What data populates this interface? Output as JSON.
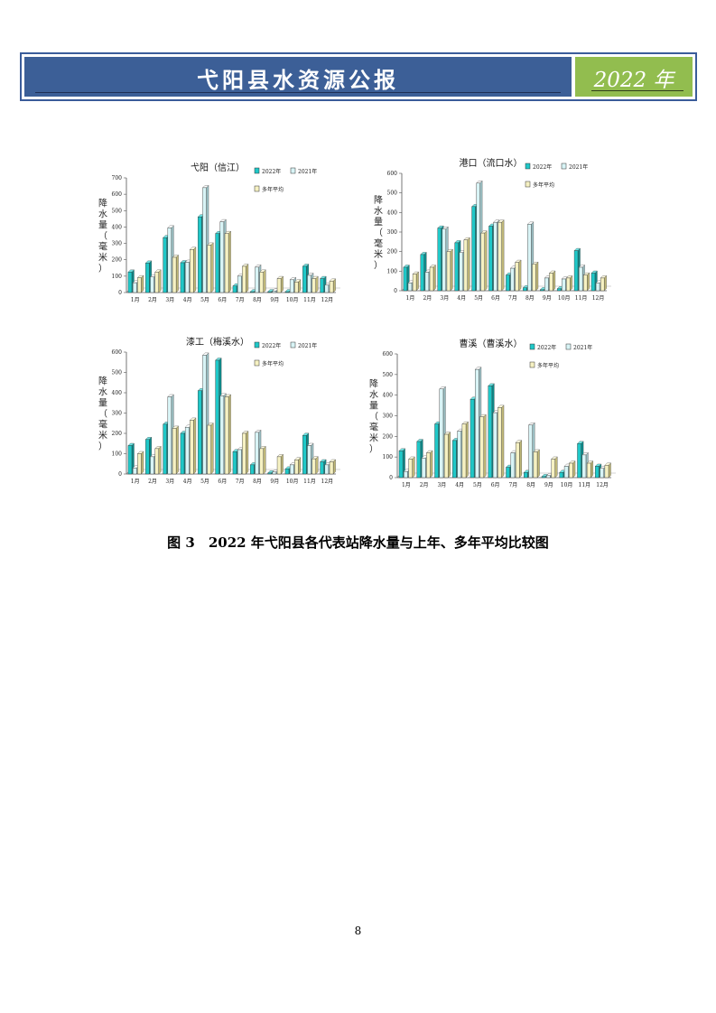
{
  "header": {
    "title": "弋阳县水资源公报",
    "year": "2022 年"
  },
  "legend_labels": [
    "2022年",
    "2021年",
    "多年平均"
  ],
  "colors": {
    "y2022": "#1fc8c8",
    "y2021": "#d8f4f6",
    "avg": "#f6f1c2"
  },
  "chart_data": [
    {
      "type": "bar",
      "title": "弋阳（信江）",
      "ylabel": "降水量（毫米）",
      "ylim": [
        0,
        700
      ],
      "yticks": [
        0,
        100,
        200,
        300,
        400,
        500,
        600,
        700
      ],
      "categories": [
        "1月",
        "2月",
        "3月",
        "4月",
        "5月",
        "6月",
        "7月",
        "8月",
        "9月",
        "10月",
        "11月",
        "12月"
      ],
      "series": [
        {
          "name": "2022年",
          "values": [
            125,
            180,
            335,
            182,
            462,
            360,
            40,
            5,
            5,
            5,
            160,
            85
          ]
        },
        {
          "name": "2021年",
          "values": [
            60,
            95,
            395,
            185,
            640,
            432,
            100,
            155,
            10,
            78,
            105,
            45
          ]
        },
        {
          "name": "多年平均",
          "values": [
            90,
            125,
            215,
            263,
            290,
            360,
            160,
            125,
            85,
            65,
            85,
            70
          ]
        }
      ]
    },
    {
      "type": "bar",
      "title": "港口（流口水）",
      "ylabel": "降水量（毫米）",
      "ylim": [
        0,
        600
      ],
      "yticks": [
        0,
        100,
        200,
        300,
        400,
        500,
        600
      ],
      "categories": [
        "1月",
        "2月",
        "3月",
        "4月",
        "5月",
        "6月",
        "7月",
        "8月",
        "9月",
        "10月",
        "11月",
        "12月"
      ],
      "series": [
        {
          "name": "2022年",
          "values": [
            120,
            185,
            320,
            245,
            430,
            330,
            80,
            15,
            5,
            10,
            205,
            90
          ]
        },
        {
          "name": "2021年",
          "values": [
            40,
            95,
            315,
            195,
            550,
            350,
            115,
            340,
            65,
            60,
            120,
            40
          ]
        },
        {
          "name": "多年平均",
          "values": [
            85,
            120,
            200,
            260,
            295,
            350,
            145,
            135,
            90,
            65,
            80,
            65
          ]
        }
      ]
    },
    {
      "type": "bar",
      "title": "漆工（梅溪水）",
      "ylabel": "降水量（毫米）",
      "ylim": [
        0,
        600
      ],
      "yticks": [
        0,
        100,
        200,
        300,
        400,
        500,
        600
      ],
      "categories": [
        "1月",
        "2月",
        "3月",
        "4月",
        "5月",
        "6月",
        "7月",
        "8月",
        "9月",
        "10月",
        "11月",
        "12月"
      ],
      "series": [
        {
          "name": "2022年",
          "values": [
            140,
            170,
            245,
            200,
            410,
            560,
            110,
            45,
            5,
            25,
            190,
            60
          ]
        },
        {
          "name": "2021年",
          "values": [
            30,
            85,
            380,
            230,
            585,
            385,
            120,
            205,
            10,
            45,
            140,
            45
          ]
        },
        {
          "name": "多年平均",
          "values": [
            100,
            125,
            225,
            265,
            240,
            380,
            200,
            125,
            85,
            70,
            75,
            60
          ]
        }
      ]
    },
    {
      "type": "bar",
      "title": "曹溪（曹溪水）",
      "ylabel": "降水量（毫米）",
      "ylim": [
        0,
        600
      ],
      "yticks": [
        0,
        100,
        200,
        300,
        400,
        500,
        600
      ],
      "categories": [
        "1月",
        "2月",
        "3月",
        "4月",
        "5月",
        "6月",
        "7月",
        "8月",
        "9月",
        "10月",
        "11月",
        "12月"
      ],
      "series": [
        {
          "name": "2022年",
          "values": [
            130,
            175,
            260,
            180,
            380,
            445,
            50,
            25,
            5,
            25,
            165,
            55
          ]
        },
        {
          "name": "2021年",
          "values": [
            30,
            95,
            430,
            225,
            525,
            315,
            120,
            255,
            10,
            55,
            110,
            45
          ]
        },
        {
          "name": "多年平均",
          "values": [
            90,
            120,
            210,
            260,
            295,
            340,
            170,
            125,
            90,
            70,
            70,
            60
          ]
        }
      ]
    }
  ],
  "caption": "图 3　2022 年弋阳县各代表站降水量与上年、多年平均比较图",
  "page_number": "8"
}
